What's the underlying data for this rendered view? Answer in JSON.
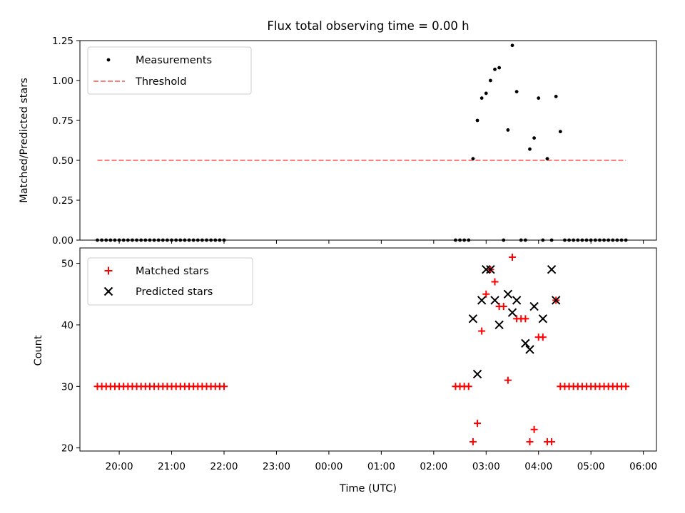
{
  "chart_data": [
    {
      "type": "scatter",
      "title": "Flux total observing time = 0.00 h",
      "xlabel": "",
      "ylabel": "Matched/Predicted stars",
      "xlim": [
        "19:15",
        "06:15"
      ],
      "ylim": [
        0,
        1.25
      ],
      "yticks": [
        "0.00",
        "0.25",
        "0.50",
        "0.75",
        "1.00",
        "1.25"
      ],
      "legend_position": "top-left",
      "grid": false,
      "series": [
        {
          "name": "Measurements",
          "kind": "points",
          "color": "#000000",
          "x": [
            "19:35",
            "19:40",
            "19:45",
            "19:50",
            "19:55",
            "20:00",
            "20:05",
            "20:10",
            "20:15",
            "20:20",
            "20:25",
            "20:30",
            "20:35",
            "20:40",
            "20:45",
            "20:50",
            "20:55",
            "21:00",
            "21:05",
            "21:10",
            "21:15",
            "21:20",
            "21:25",
            "21:30",
            "21:35",
            "21:40",
            "21:45",
            "21:50",
            "21:55",
            "22:00",
            "02:25",
            "02:30",
            "02:35",
            "02:40",
            "02:45",
            "02:50",
            "02:55",
            "03:00",
            "03:05",
            "03:10",
            "03:15",
            "03:20",
            "03:25",
            "03:30",
            "03:35",
            "03:40",
            "03:45",
            "03:50",
            "03:55",
            "04:00",
            "04:05",
            "04:10",
            "04:15",
            "04:20",
            "04:25",
            "04:30",
            "04:35",
            "04:40",
            "04:45",
            "04:50",
            "04:55",
            "05:00",
            "05:05",
            "05:10",
            "05:15",
            "05:20",
            "05:25",
            "05:30",
            "05:35",
            "05:40"
          ],
          "y": [
            0,
            0,
            0,
            0,
            0,
            0,
            0,
            0,
            0,
            0,
            0,
            0,
            0,
            0,
            0,
            0,
            0,
            0,
            0,
            0,
            0,
            0,
            0,
            0,
            0,
            0,
            0,
            0,
            0,
            0,
            0,
            0,
            0,
            0,
            0.51,
            0.75,
            0.89,
            0.92,
            1.0,
            1.07,
            1.08,
            0,
            0.69,
            1.22,
            0.93,
            0,
            0,
            0.57,
            0.64,
            0.89,
            0,
            0.51,
            0,
            0.9,
            0.68,
            0,
            0,
            0,
            0,
            0,
            0,
            0,
            0,
            0,
            0,
            0,
            0,
            0,
            0,
            0
          ]
        },
        {
          "name": "Threshold",
          "kind": "dashed-line",
          "color": "#ff7f7f",
          "x": [
            "19:35",
            "05:40"
          ],
          "y": [
            0.5,
            0.5
          ]
        }
      ]
    },
    {
      "type": "scatter",
      "title": "",
      "xlabel": "Time (UTC)",
      "ylabel": "Count",
      "xlim": [
        "19:15",
        "06:15"
      ],
      "ylim": [
        19.5,
        52.5
      ],
      "yticks": [
        "20",
        "30",
        "40",
        "50"
      ],
      "xticks": [
        "20:00",
        "21:00",
        "22:00",
        "23:00",
        "00:00",
        "01:00",
        "02:00",
        "03:00",
        "04:00",
        "05:00",
        "06:00"
      ],
      "legend_position": "top-left",
      "grid": false,
      "series": [
        {
          "name": "Matched stars",
          "kind": "plus",
          "color": "#ff0000",
          "x": [
            "19:35",
            "19:40",
            "19:45",
            "19:50",
            "19:55",
            "20:00",
            "20:05",
            "20:10",
            "20:15",
            "20:20",
            "20:25",
            "20:30",
            "20:35",
            "20:40",
            "20:45",
            "20:50",
            "20:55",
            "21:00",
            "21:05",
            "21:10",
            "21:15",
            "21:20",
            "21:25",
            "21:30",
            "21:35",
            "21:40",
            "21:45",
            "21:50",
            "21:55",
            "22:00",
            "02:25",
            "02:30",
            "02:35",
            "02:40",
            "02:45",
            "02:50",
            "02:55",
            "03:00",
            "03:05",
            "03:10",
            "03:15",
            "03:20",
            "03:25",
            "03:30",
            "03:35",
            "03:40",
            "03:45",
            "03:50",
            "03:55",
            "04:00",
            "04:05",
            "04:10",
            "04:15",
            "04:20",
            "04:25",
            "04:30",
            "04:35",
            "04:40",
            "04:45",
            "04:50",
            "04:55",
            "05:00",
            "05:05",
            "05:10",
            "05:15",
            "05:20",
            "05:25",
            "05:30",
            "05:35",
            "05:40"
          ],
          "y": [
            30,
            30,
            30,
            30,
            30,
            30,
            30,
            30,
            30,
            30,
            30,
            30,
            30,
            30,
            30,
            30,
            30,
            30,
            30,
            30,
            30,
            30,
            30,
            30,
            30,
            30,
            30,
            30,
            30,
            30,
            30,
            30,
            30,
            30,
            21,
            24,
            39,
            45,
            49,
            47,
            43,
            43,
            31,
            51,
            41,
            41,
            41,
            21,
            23,
            38,
            38,
            21,
            21,
            44,
            30,
            30,
            30,
            30,
            30,
            30,
            30,
            30,
            30,
            30,
            30,
            30,
            30,
            30,
            30,
            30
          ]
        },
        {
          "name": "Predicted stars",
          "kind": "cross",
          "color": "#000000",
          "x": [
            "02:45",
            "02:50",
            "02:55",
            "03:00",
            "03:05",
            "03:10",
            "03:15",
            "03:25",
            "03:30",
            "03:35",
            "03:45",
            "03:50",
            "03:55",
            "04:05",
            "04:15",
            "04:20"
          ],
          "y": [
            41,
            32,
            44,
            49,
            49,
            44,
            40,
            45,
            42,
            44,
            37,
            36,
            43,
            41,
            49,
            44
          ]
        }
      ]
    }
  ]
}
